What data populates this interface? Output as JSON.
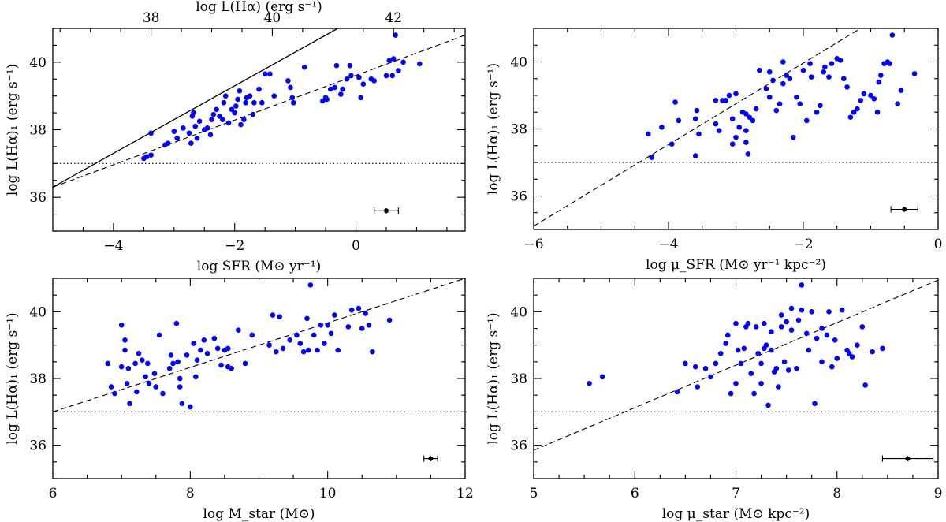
{
  "chart_data": [
    {
      "type": "scatter",
      "xlabel": "log SFR  (M⊙ yr⁻¹)",
      "ylabel": "log L(Hα)₁  (erg s⁻¹)",
      "top_xlabel": "log L(Hα)  (erg s⁻¹)",
      "xlim": [
        -5,
        1.8
      ],
      "ylim": [
        35,
        41
      ],
      "xticks": [
        -4,
        -2,
        0
      ],
      "yticks": [
        36,
        38,
        40
      ],
      "top_ticks": [
        {
          "x": -3.38,
          "label": "38"
        },
        {
          "x": -1.38,
          "label": "40"
        },
        {
          "x": 0.62,
          "label": "42"
        }
      ],
      "grid": false,
      "marker_color": "#0000ff",
      "points": [
        [
          -3.5,
          37.15
        ],
        [
          -3.45,
          37.2
        ],
        [
          -3.38,
          37.25
        ],
        [
          -3.38,
          37.9
        ],
        [
          -3.15,
          37.55
        ],
        [
          -3.1,
          37.6
        ],
        [
          -3.0,
          37.95
        ],
        [
          -2.95,
          37.75
        ],
        [
          -2.85,
          38.05
        ],
        [
          -2.75,
          37.9
        ],
        [
          -2.72,
          37.6
        ],
        [
          -2.7,
          38.4
        ],
        [
          -2.68,
          38.5
        ],
        [
          -2.65,
          38.1
        ],
        [
          -2.62,
          37.75
        ],
        [
          -2.58,
          38.25
        ],
        [
          -2.5,
          38.0
        ],
        [
          -2.45,
          38.05
        ],
        [
          -2.4,
          37.85
        ],
        [
          -2.38,
          38.3
        ],
        [
          -2.35,
          38.45
        ],
        [
          -2.3,
          38.6
        ],
        [
          -2.25,
          38.4
        ],
        [
          -2.2,
          38.3
        ],
        [
          -2.18,
          38.8
        ],
        [
          -2.15,
          39.0
        ],
        [
          -2.1,
          38.2
        ],
        [
          -2.05,
          38.6
        ],
        [
          -2.0,
          38.5
        ],
        [
          -1.98,
          38.7
        ],
        [
          -1.95,
          38.9
        ],
        [
          -1.92,
          39.15
        ],
        [
          -1.9,
          38.15
        ],
        [
          -1.85,
          38.3
        ],
        [
          -1.82,
          38.8
        ],
        [
          -1.8,
          38.95
        ],
        [
          -1.75,
          39.0
        ],
        [
          -1.7,
          38.45
        ],
        [
          -1.68,
          38.8
        ],
        [
          -1.6,
          39.2
        ],
        [
          -1.55,
          38.8
        ],
        [
          -1.5,
          39.65
        ],
        [
          -1.42,
          39.65
        ],
        [
          -1.35,
          39.0
        ],
        [
          -1.12,
          39.45
        ],
        [
          -1.08,
          39.25
        ],
        [
          -1.05,
          38.95
        ],
        [
          -1.03,
          38.8
        ],
        [
          -0.85,
          39.85
        ],
        [
          -0.55,
          38.85
        ],
        [
          -0.5,
          38.95
        ],
        [
          -0.48,
          38.9
        ],
        [
          -0.42,
          39.2
        ],
        [
          -0.35,
          39.25
        ],
        [
          -0.32,
          39.9
        ],
        [
          -0.25,
          39.05
        ],
        [
          -0.22,
          39.2
        ],
        [
          -0.15,
          39.5
        ],
        [
          -0.1,
          39.9
        ],
        [
          -0.08,
          39.6
        ],
        [
          0.05,
          39.55
        ],
        [
          0.08,
          38.95
        ],
        [
          0.12,
          39.35
        ],
        [
          0.25,
          39.5
        ],
        [
          0.3,
          39.45
        ],
        [
          0.5,
          39.6
        ],
        [
          0.6,
          39.6
        ],
        [
          0.55,
          40.05
        ],
        [
          0.62,
          40.1
        ],
        [
          0.65,
          40.8
        ],
        [
          0.7,
          39.75
        ],
        [
          0.78,
          40.0
        ],
        [
          1.05,
          39.95
        ]
      ],
      "error_point": {
        "x": 0.5,
        "y": 35.6,
        "xerr": 0.2,
        "yerr": 0.08
      },
      "reference_lines": [
        {
          "style": "solid",
          "points": [
            [
              -5,
              36.3
            ],
            [
              -0.3,
              41.0
            ]
          ]
        },
        {
          "style": "dashed",
          "points": [
            [
              -5,
              36.3
            ],
            [
              1.8,
              40.8
            ]
          ]
        },
        {
          "style": "dotted",
          "points": [
            [
              -5,
              37.0
            ],
            [
              1.8,
              37.0
            ]
          ]
        }
      ]
    },
    {
      "type": "scatter",
      "xlabel": "log μ_SFR  (M⊙ yr⁻¹ kpc⁻²)",
      "ylabel": "log L(Hα)₁  (erg s⁻¹)",
      "xlim": [
        -6,
        0
      ],
      "ylim": [
        35,
        41
      ],
      "xticks": [
        -6,
        -4,
        -2,
        0
      ],
      "yticks": [
        36,
        38,
        40
      ],
      "grid": false,
      "marker_color": "#0000ff",
      "points": [
        [
          -4.25,
          37.15
        ],
        [
          -4.3,
          37.85
        ],
        [
          -4.1,
          38.05
        ],
        [
          -3.95,
          37.55
        ],
        [
          -3.9,
          38.8
        ],
        [
          -3.85,
          38.25
        ],
        [
          -3.6,
          37.2
        ],
        [
          -3.6,
          38.3
        ],
        [
          -3.58,
          38.55
        ],
        [
          -3.55,
          37.85
        ],
        [
          -3.3,
          38.15
        ],
        [
          -3.3,
          38.85
        ],
        [
          -3.25,
          37.95
        ],
        [
          -3.2,
          38.85
        ],
        [
          -3.15,
          38.85
        ],
        [
          -3.1,
          39.0
        ],
        [
          -3.05,
          37.55
        ],
        [
          -3.05,
          38.3
        ],
        [
          -3.0,
          37.75
        ],
        [
          -3.0,
          39.05
        ],
        [
          -2.95,
          38.05
        ],
        [
          -2.9,
          38.5
        ],
        [
          -2.85,
          38.45
        ],
        [
          -2.85,
          37.95
        ],
        [
          -2.85,
          37.6
        ],
        [
          -2.82,
          37.25
        ],
        [
          -2.8,
          38.35
        ],
        [
          -2.75,
          38.25
        ],
        [
          -2.7,
          38.6
        ],
        [
          -2.65,
          39.75
        ],
        [
          -2.55,
          39.2
        ],
        [
          -2.5,
          38.95
        ],
        [
          -2.5,
          39.7
        ],
        [
          -2.45,
          39.45
        ],
        [
          -2.4,
          38.55
        ],
        [
          -2.35,
          38.75
        ],
        [
          -2.3,
          39.35
        ],
        [
          -2.3,
          40.0
        ],
        [
          -2.25,
          39.6
        ],
        [
          -2.2,
          39.5
        ],
        [
          -2.15,
          37.75
        ],
        [
          -2.1,
          38.95
        ],
        [
          -2.05,
          38.75
        ],
        [
          -2.0,
          39.75
        ],
        [
          -1.95,
          38.25
        ],
        [
          -1.9,
          39.95
        ],
        [
          -1.88,
          39.55
        ],
        [
          -1.8,
          38.5
        ],
        [
          -1.75,
          38.7
        ],
        [
          -1.7,
          39.7
        ],
        [
          -1.68,
          39.85
        ],
        [
          -1.62,
          39.55
        ],
        [
          -1.58,
          39.95
        ],
        [
          -1.5,
          40.1
        ],
        [
          -1.45,
          40.05
        ],
        [
          -1.4,
          39.5
        ],
        [
          -1.35,
          39.25
        ],
        [
          -1.3,
          38.35
        ],
        [
          -1.25,
          38.5
        ],
        [
          -1.2,
          38.6
        ],
        [
          -1.15,
          38.85
        ],
        [
          -1.1,
          39.05
        ],
        [
          -1.0,
          39.0
        ],
        [
          -0.95,
          38.9
        ],
        [
          -0.9,
          38.5
        ],
        [
          -0.88,
          39.4
        ],
        [
          -0.85,
          39.6
        ],
        [
          -0.8,
          39.95
        ],
        [
          -0.75,
          40.0
        ],
        [
          -0.72,
          39.95
        ],
        [
          -0.68,
          40.8
        ],
        [
          -0.6,
          38.75
        ],
        [
          -0.55,
          39.15
        ],
        [
          -0.35,
          39.65
        ]
      ],
      "error_point": {
        "x": -0.5,
        "y": 35.6,
        "xerr": 0.2,
        "yerr": 0.08
      },
      "reference_lines": [
        {
          "style": "dashed",
          "points": [
            [
              -6,
              35.1
            ],
            [
              -1.15,
              41.0
            ]
          ]
        },
        {
          "style": "dotted",
          "points": [
            [
              -6,
              37.0
            ],
            [
              0,
              37.0
            ]
          ]
        }
      ]
    },
    {
      "type": "scatter",
      "xlabel": "log M_star  (M⊙)",
      "ylabel": "log L(Hα)₁  (erg s⁻¹)",
      "xlim": [
        6,
        12
      ],
      "ylim": [
        35,
        41
      ],
      "xticks": [
        6,
        8,
        10,
        12
      ],
      "yticks": [
        36,
        38,
        40
      ],
      "grid": false,
      "marker_color": "#0000ff",
      "points": [
        [
          6.8,
          38.45
        ],
        [
          6.85,
          37.75
        ],
        [
          6.9,
          37.55
        ],
        [
          7.0,
          38.35
        ],
        [
          7.0,
          39.6
        ],
        [
          7.05,
          39.15
        ],
        [
          7.05,
          38.85
        ],
        [
          7.08,
          37.85
        ],
        [
          7.1,
          38.3
        ],
        [
          7.12,
          37.25
        ],
        [
          7.2,
          38.45
        ],
        [
          7.22,
          37.6
        ],
        [
          7.25,
          38.75
        ],
        [
          7.3,
          38.55
        ],
        [
          7.35,
          38.05
        ],
        [
          7.38,
          38.45
        ],
        [
          7.4,
          37.85
        ],
        [
          7.48,
          38.15
        ],
        [
          7.5,
          37.75
        ],
        [
          7.55,
          39.3
        ],
        [
          7.6,
          37.55
        ],
        [
          7.7,
          38.3
        ],
        [
          7.72,
          38.7
        ],
        [
          7.75,
          38.45
        ],
        [
          7.8,
          39.65
        ],
        [
          7.82,
          38.5
        ],
        [
          7.85,
          38.0
        ],
        [
          7.85,
          37.75
        ],
        [
          7.88,
          37.25
        ],
        [
          7.95,
          38.7
        ],
        [
          8.0,
          37.15
        ],
        [
          8.05,
          39.05
        ],
        [
          8.08,
          38.05
        ],
        [
          8.1,
          38.55
        ],
        [
          8.15,
          38.85
        ],
        [
          8.2,
          39.15
        ],
        [
          8.25,
          38.75
        ],
        [
          8.35,
          39.2
        ],
        [
          8.4,
          38.9
        ],
        [
          8.45,
          38.4
        ],
        [
          8.5,
          38.85
        ],
        [
          8.55,
          38.9
        ],
        [
          8.55,
          38.35
        ],
        [
          8.6,
          38.3
        ],
        [
          8.7,
          39.45
        ],
        [
          8.8,
          38.45
        ],
        [
          8.9,
          39.3
        ],
        [
          9.15,
          39.0
        ],
        [
          9.2,
          39.9
        ],
        [
          9.25,
          38.8
        ],
        [
          9.3,
          39.85
        ],
        [
          9.35,
          38.9
        ],
        [
          9.45,
          39.15
        ],
        [
          9.55,
          39.3
        ],
        [
          9.6,
          39.05
        ],
        [
          9.65,
          38.8
        ],
        [
          9.7,
          39.8
        ],
        [
          9.72,
          38.85
        ],
        [
          9.75,
          40.8
        ],
        [
          9.8,
          39.3
        ],
        [
          9.85,
          38.85
        ],
        [
          9.9,
          39.6
        ],
        [
          9.95,
          39.05
        ],
        [
          10.0,
          39.6
        ],
        [
          10.05,
          39.35
        ],
        [
          10.1,
          39.9
        ],
        [
          10.15,
          38.85
        ],
        [
          10.3,
          39.55
        ],
        [
          10.35,
          40.05
        ],
        [
          10.45,
          40.1
        ],
        [
          10.5,
          39.5
        ],
        [
          10.55,
          39.95
        ],
        [
          10.6,
          39.6
        ],
        [
          10.65,
          38.8
        ],
        [
          10.9,
          39.75
        ]
      ],
      "error_point": {
        "x": 11.5,
        "y": 35.6,
        "xerr": 0.1,
        "yerr": 0.08
      },
      "reference_lines": [
        {
          "style": "dashed",
          "points": [
            [
              6,
              37.0
            ],
            [
              12,
              41.0
            ]
          ]
        },
        {
          "style": "dotted",
          "points": [
            [
              6,
              37.0
            ],
            [
              12,
              37.0
            ]
          ]
        }
      ]
    },
    {
      "type": "scatter",
      "xlabel": "log μ_star  (M⊙ kpc⁻²)",
      "ylabel": "log L(Hα)₁  (erg s⁻¹)",
      "xlim": [
        5,
        9
      ],
      "ylim": [
        35,
        41
      ],
      "xticks": [
        5,
        6,
        7,
        8,
        9
      ],
      "yticks": [
        36,
        38,
        40
      ],
      "grid": false,
      "marker_color": "#0000ff",
      "points": [
        [
          5.55,
          37.85
        ],
        [
          5.68,
          38.05
        ],
        [
          6.42,
          37.6
        ],
        [
          6.5,
          38.45
        ],
        [
          6.6,
          38.35
        ],
        [
          6.62,
          37.75
        ],
        [
          6.7,
          38.3
        ],
        [
          6.75,
          38.05
        ],
        [
          6.8,
          38.45
        ],
        [
          6.85,
          38.75
        ],
        [
          6.9,
          39.05
        ],
        [
          6.92,
          39.3
        ],
        [
          6.95,
          37.55
        ],
        [
          7.0,
          39.65
        ],
        [
          7.0,
          37.85
        ],
        [
          7.02,
          38.85
        ],
        [
          7.05,
          38.45
        ],
        [
          7.08,
          38.9
        ],
        [
          7.1,
          39.55
        ],
        [
          7.12,
          39.65
        ],
        [
          7.15,
          38.15
        ],
        [
          7.18,
          37.55
        ],
        [
          7.2,
          39.55
        ],
        [
          7.22,
          38.75
        ],
        [
          7.25,
          38.45
        ],
        [
          7.25,
          37.85
        ],
        [
          7.28,
          38.9
        ],
        [
          7.3,
          39.0
        ],
        [
          7.32,
          37.2
        ],
        [
          7.35,
          38.85
        ],
        [
          7.38,
          38.2
        ],
        [
          7.4,
          38.3
        ],
        [
          7.42,
          37.75
        ],
        [
          7.45,
          39.9
        ],
        [
          7.48,
          38.5
        ],
        [
          7.5,
          39.7
        ],
        [
          7.52,
          38.25
        ],
        [
          7.55,
          39.45
        ],
        [
          7.6,
          38.3
        ],
        [
          7.62,
          39.75
        ],
        [
          7.65,
          40.05
        ],
        [
          7.7,
          39.35
        ],
        [
          7.72,
          38.85
        ],
        [
          7.75,
          40.0
        ],
        [
          7.78,
          37.25
        ],
        [
          7.8,
          39.2
        ],
        [
          7.85,
          39.5
        ],
        [
          7.85,
          38.5
        ],
        [
          7.9,
          39.3
        ],
        [
          7.92,
          40.0
        ],
        [
          7.95,
          38.35
        ],
        [
          7.98,
          39.15
        ],
        [
          8.0,
          38.6
        ],
        [
          8.05,
          40.05
        ],
        [
          8.1,
          38.85
        ],
        [
          8.12,
          38.75
        ],
        [
          8.15,
          38.65
        ],
        [
          8.2,
          39.0
        ],
        [
          8.25,
          39.55
        ],
        [
          8.28,
          37.8
        ],
        [
          8.35,
          38.8
        ],
        [
          8.45,
          38.9
        ],
        [
          7.65,
          40.8
        ],
        [
          7.55,
          40.1
        ],
        [
          7.28,
          39.65
        ],
        [
          7.45,
          39.55
        ],
        [
          7.35,
          39.4
        ]
      ],
      "error_point": {
        "x": 8.7,
        "y": 35.6,
        "xerr": 0.25,
        "yerr": 0.08
      },
      "reference_lines": [
        {
          "style": "dashed",
          "points": [
            [
              5,
              35.85
            ],
            [
              9,
              40.95
            ]
          ]
        },
        {
          "style": "dotted",
          "points": [
            [
              5,
              37.0
            ],
            [
              9,
              37.0
            ]
          ]
        }
      ]
    }
  ]
}
